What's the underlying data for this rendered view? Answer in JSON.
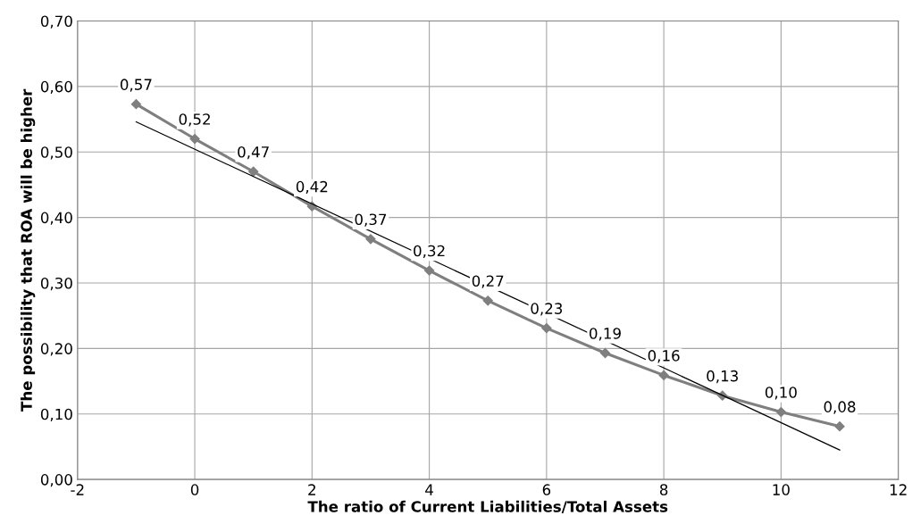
{
  "chart_data": {
    "type": "line",
    "xlabel": "The ratio of Current Liabilities/Total Assets",
    "ylabel": "The possibility that ROA will be higher",
    "xlim": [
      -2,
      12
    ],
    "xticks": [
      -2,
      0,
      2,
      4,
      6,
      8,
      10,
      12
    ],
    "ylim": [
      0,
      0.7
    ],
    "yticks": [
      {
        "value": 0,
        "label": "0,00"
      },
      {
        "value": 0.1,
        "label": "0,10"
      },
      {
        "value": 0.2,
        "label": "0,20"
      },
      {
        "value": 0.3,
        "label": "0,30"
      },
      {
        "value": 0.4,
        "label": "0,40"
      },
      {
        "value": 0.5,
        "label": "0,50"
      },
      {
        "value": 0.6,
        "label": "0,60"
      },
      {
        "value": 0.7,
        "label": "0,70"
      }
    ],
    "grid": true,
    "series": [
      {
        "color": "#7f7f7f",
        "marker": "diamond",
        "line_style": "solid",
        "x": [
          -1,
          0,
          1,
          2,
          3,
          4,
          5,
          6,
          7,
          8,
          9,
          10,
          11
        ],
        "values": [
          0.573,
          0.52,
          0.47,
          0.417,
          0.367,
          0.319,
          0.273,
          0.231,
          0.193,
          0.159,
          0.128,
          0.103,
          0.081
        ],
        "value_labels": [
          "0,57",
          "0,52",
          "0,47",
          "0,42",
          "0,37",
          "0,32",
          "0,27",
          "0,23",
          "0,19",
          "0,16",
          "0,13",
          "0,10",
          "0,08"
        ]
      },
      {
        "type": "line",
        "color": "#000000",
        "marker": "none",
        "line_style": "solid",
        "x": [
          -1,
          11
        ],
        "values": [
          0.546,
          0.045
        ]
      }
    ]
  }
}
